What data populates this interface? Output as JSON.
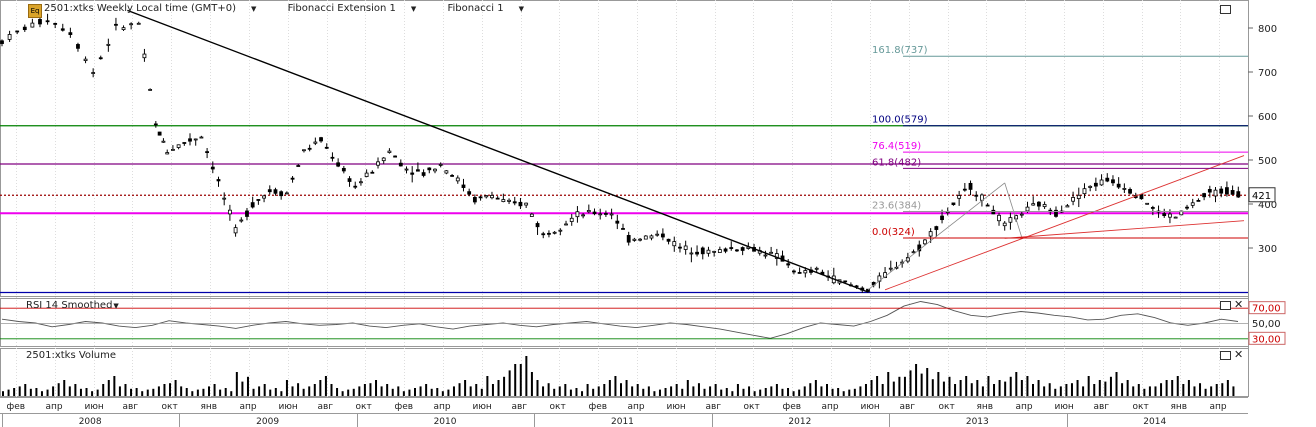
{
  "header": {
    "symbol_label": "2501:xtks Weekly Local time (GMT+0)",
    "study1": "Fibonacci Extension 1",
    "study2": "Fibonacci 1",
    "badge": "Eq"
  },
  "colors": {
    "candle": "#000000",
    "trendline": "#000000",
    "fib_ext_0": "#cc0000",
    "fib_ext_23": "#999999",
    "fib_ext_61": "#800080",
    "fib_ext_76": "#ee00ee",
    "fib_ext_100": "#000080",
    "fib_ext_161": "#669999",
    "green_level": "#008000",
    "purple_level": "#800080",
    "magenta_level": "#ee00ee",
    "blue_level": "#0000aa",
    "price_line": "#990000",
    "rsi_line": "#555555",
    "rsi_upper": "#cc0000",
    "rsi_lower": "#008000",
    "volume": "#000000"
  },
  "panels": {
    "rsi_title": "RSI 14 Smoothed",
    "volume_title": "2501:xtks Volume"
  },
  "chart_data": [
    {
      "type": "candlestick",
      "title": "2501:xtks Weekly Local time (GMT+0)",
      "ylim": [
        200,
        850
      ],
      "y_ticks": [
        "800",
        "700",
        "600",
        "500",
        "400",
        "300"
      ],
      "last_price_label": "421",
      "x_month_ticks": [
        "фев",
        "апр",
        "июн",
        "авг",
        "окт",
        "янв",
        "апр",
        "июн",
        "авг",
        "окт",
        "фев",
        "апр",
        "июн",
        "авг",
        "окт",
        "фев",
        "апр",
        "июн",
        "авг",
        "окт",
        "фев",
        "апр",
        "июн",
        "авг",
        "окт",
        "янв",
        "апр",
        "июн",
        "авг",
        "окт",
        "янв",
        "апр"
      ],
      "x_year_ticks": [
        "2008",
        "2009",
        "2010",
        "2011",
        "2012",
        "2013",
        "2014"
      ],
      "fibonacci_extension_labels": [
        "161.8(737)",
        "100.0(579)",
        "76.4(519)",
        "61.8(482)",
        "23.6(384)",
        "0.0(324)"
      ],
      "fibonacci_extension_levels": [
        737,
        579,
        519,
        482,
        384,
        324
      ],
      "horizontal_levels": [
        579,
        492,
        421,
        380,
        200
      ],
      "price_path": [
        {
          "x": 0,
          "y": 770
        },
        {
          "x": 4,
          "y": 800
        },
        {
          "x": 8,
          "y": 820
        },
        {
          "x": 12,
          "y": 790
        },
        {
          "x": 16,
          "y": 700
        },
        {
          "x": 20,
          "y": 800
        },
        {
          "x": 24,
          "y": 810
        },
        {
          "x": 27,
          "y": 580
        },
        {
          "x": 29,
          "y": 520
        },
        {
          "x": 32,
          "y": 540
        },
        {
          "x": 35,
          "y": 555
        },
        {
          "x": 38,
          "y": 450
        },
        {
          "x": 41,
          "y": 340
        },
        {
          "x": 44,
          "y": 400
        },
        {
          "x": 47,
          "y": 430
        },
        {
          "x": 50,
          "y": 425
        },
        {
          "x": 53,
          "y": 520
        },
        {
          "x": 56,
          "y": 545
        },
        {
          "x": 59,
          "y": 490
        },
        {
          "x": 62,
          "y": 440
        },
        {
          "x": 65,
          "y": 475
        },
        {
          "x": 68,
          "y": 520
        },
        {
          "x": 71,
          "y": 480
        },
        {
          "x": 74,
          "y": 470
        },
        {
          "x": 77,
          "y": 490
        },
        {
          "x": 80,
          "y": 455
        },
        {
          "x": 83,
          "y": 410
        },
        {
          "x": 86,
          "y": 420
        },
        {
          "x": 89,
          "y": 400
        },
        {
          "x": 92,
          "y": 400
        },
        {
          "x": 95,
          "y": 330
        },
        {
          "x": 98,
          "y": 350
        },
        {
          "x": 101,
          "y": 375
        },
        {
          "x": 104,
          "y": 380
        },
        {
          "x": 107,
          "y": 380
        },
        {
          "x": 110,
          "y": 320
        },
        {
          "x": 113,
          "y": 325
        },
        {
          "x": 116,
          "y": 330
        },
        {
          "x": 119,
          "y": 300
        },
        {
          "x": 122,
          "y": 295
        },
        {
          "x": 125,
          "y": 290
        },
        {
          "x": 128,
          "y": 300
        },
        {
          "x": 131,
          "y": 300
        },
        {
          "x": 134,
          "y": 290
        },
        {
          "x": 137,
          "y": 275
        },
        {
          "x": 140,
          "y": 240
        },
        {
          "x": 143,
          "y": 250
        },
        {
          "x": 146,
          "y": 230
        },
        {
          "x": 149,
          "y": 215
        },
        {
          "x": 152,
          "y": 205
        },
        {
          "x": 155,
          "y": 240
        },
        {
          "x": 158,
          "y": 270
        },
        {
          "x": 161,
          "y": 300
        },
        {
          "x": 164,
          "y": 350
        },
        {
          "x": 167,
          "y": 400
        },
        {
          "x": 170,
          "y": 440
        },
        {
          "x": 173,
          "y": 400
        },
        {
          "x": 176,
          "y": 350
        },
        {
          "x": 179,
          "y": 380
        },
        {
          "x": 182,
          "y": 400
        },
        {
          "x": 185,
          "y": 380
        },
        {
          "x": 188,
          "y": 410
        },
        {
          "x": 191,
          "y": 440
        },
        {
          "x": 194,
          "y": 455
        },
        {
          "x": 197,
          "y": 440
        },
        {
          "x": 200,
          "y": 415
        },
        {
          "x": 203,
          "y": 380
        },
        {
          "x": 206,
          "y": 370
        },
        {
          "x": 209,
          "y": 400
        },
        {
          "x": 212,
          "y": 425
        },
        {
          "x": 215,
          "y": 430
        },
        {
          "x": 218,
          "y": 421
        }
      ]
    },
    {
      "type": "line",
      "title": "RSI 14 Smoothed",
      "ylim": [
        20,
        80
      ],
      "y_ticks": [
        "70,00",
        "50,00",
        "30,00"
      ],
      "levels": [
        70,
        50,
        30
      ],
      "series": [
        {
          "name": "RSI 14 Smoothed",
          "values": [
            55,
            52,
            50,
            45,
            48,
            52,
            50,
            46,
            44,
            47,
            53,
            50,
            48,
            46,
            43,
            47,
            50,
            52,
            49,
            47,
            48,
            50,
            46,
            44,
            47,
            49,
            45,
            42,
            46,
            48,
            50,
            47,
            45,
            48,
            50,
            52,
            49,
            46,
            44,
            47,
            50,
            48,
            45,
            42,
            38,
            34,
            30,
            36,
            44,
            50,
            48,
            46,
            52,
            60,
            72,
            78,
            74,
            66,
            60,
            58,
            62,
            65,
            63,
            60,
            58,
            54,
            55,
            60,
            62,
            57,
            50,
            47,
            50,
            55,
            52
          ]
        }
      ]
    },
    {
      "type": "bar",
      "title": "2501:xtks Volume",
      "series": [
        {
          "name": "2501:xtks Volume",
          "values": [
            2,
            3,
            2,
            4,
            3,
            2,
            5,
            3,
            2,
            3,
            4,
            2,
            3,
            2,
            6,
            3,
            2,
            4,
            3,
            5,
            2,
            3,
            4,
            3,
            2,
            3,
            2,
            4,
            3,
            5,
            8,
            10,
            4,
            3,
            2,
            3,
            5,
            4,
            3,
            2,
            3,
            4,
            3,
            2,
            3,
            2,
            3,
            2,
            4,
            3,
            2,
            3,
            5,
            6,
            8,
            7,
            6,
            5,
            4,
            5,
            6,
            5,
            4,
            3,
            4,
            5,
            6,
            4,
            3,
            4,
            5,
            4,
            3,
            4
          ]
        }
      ]
    }
  ]
}
